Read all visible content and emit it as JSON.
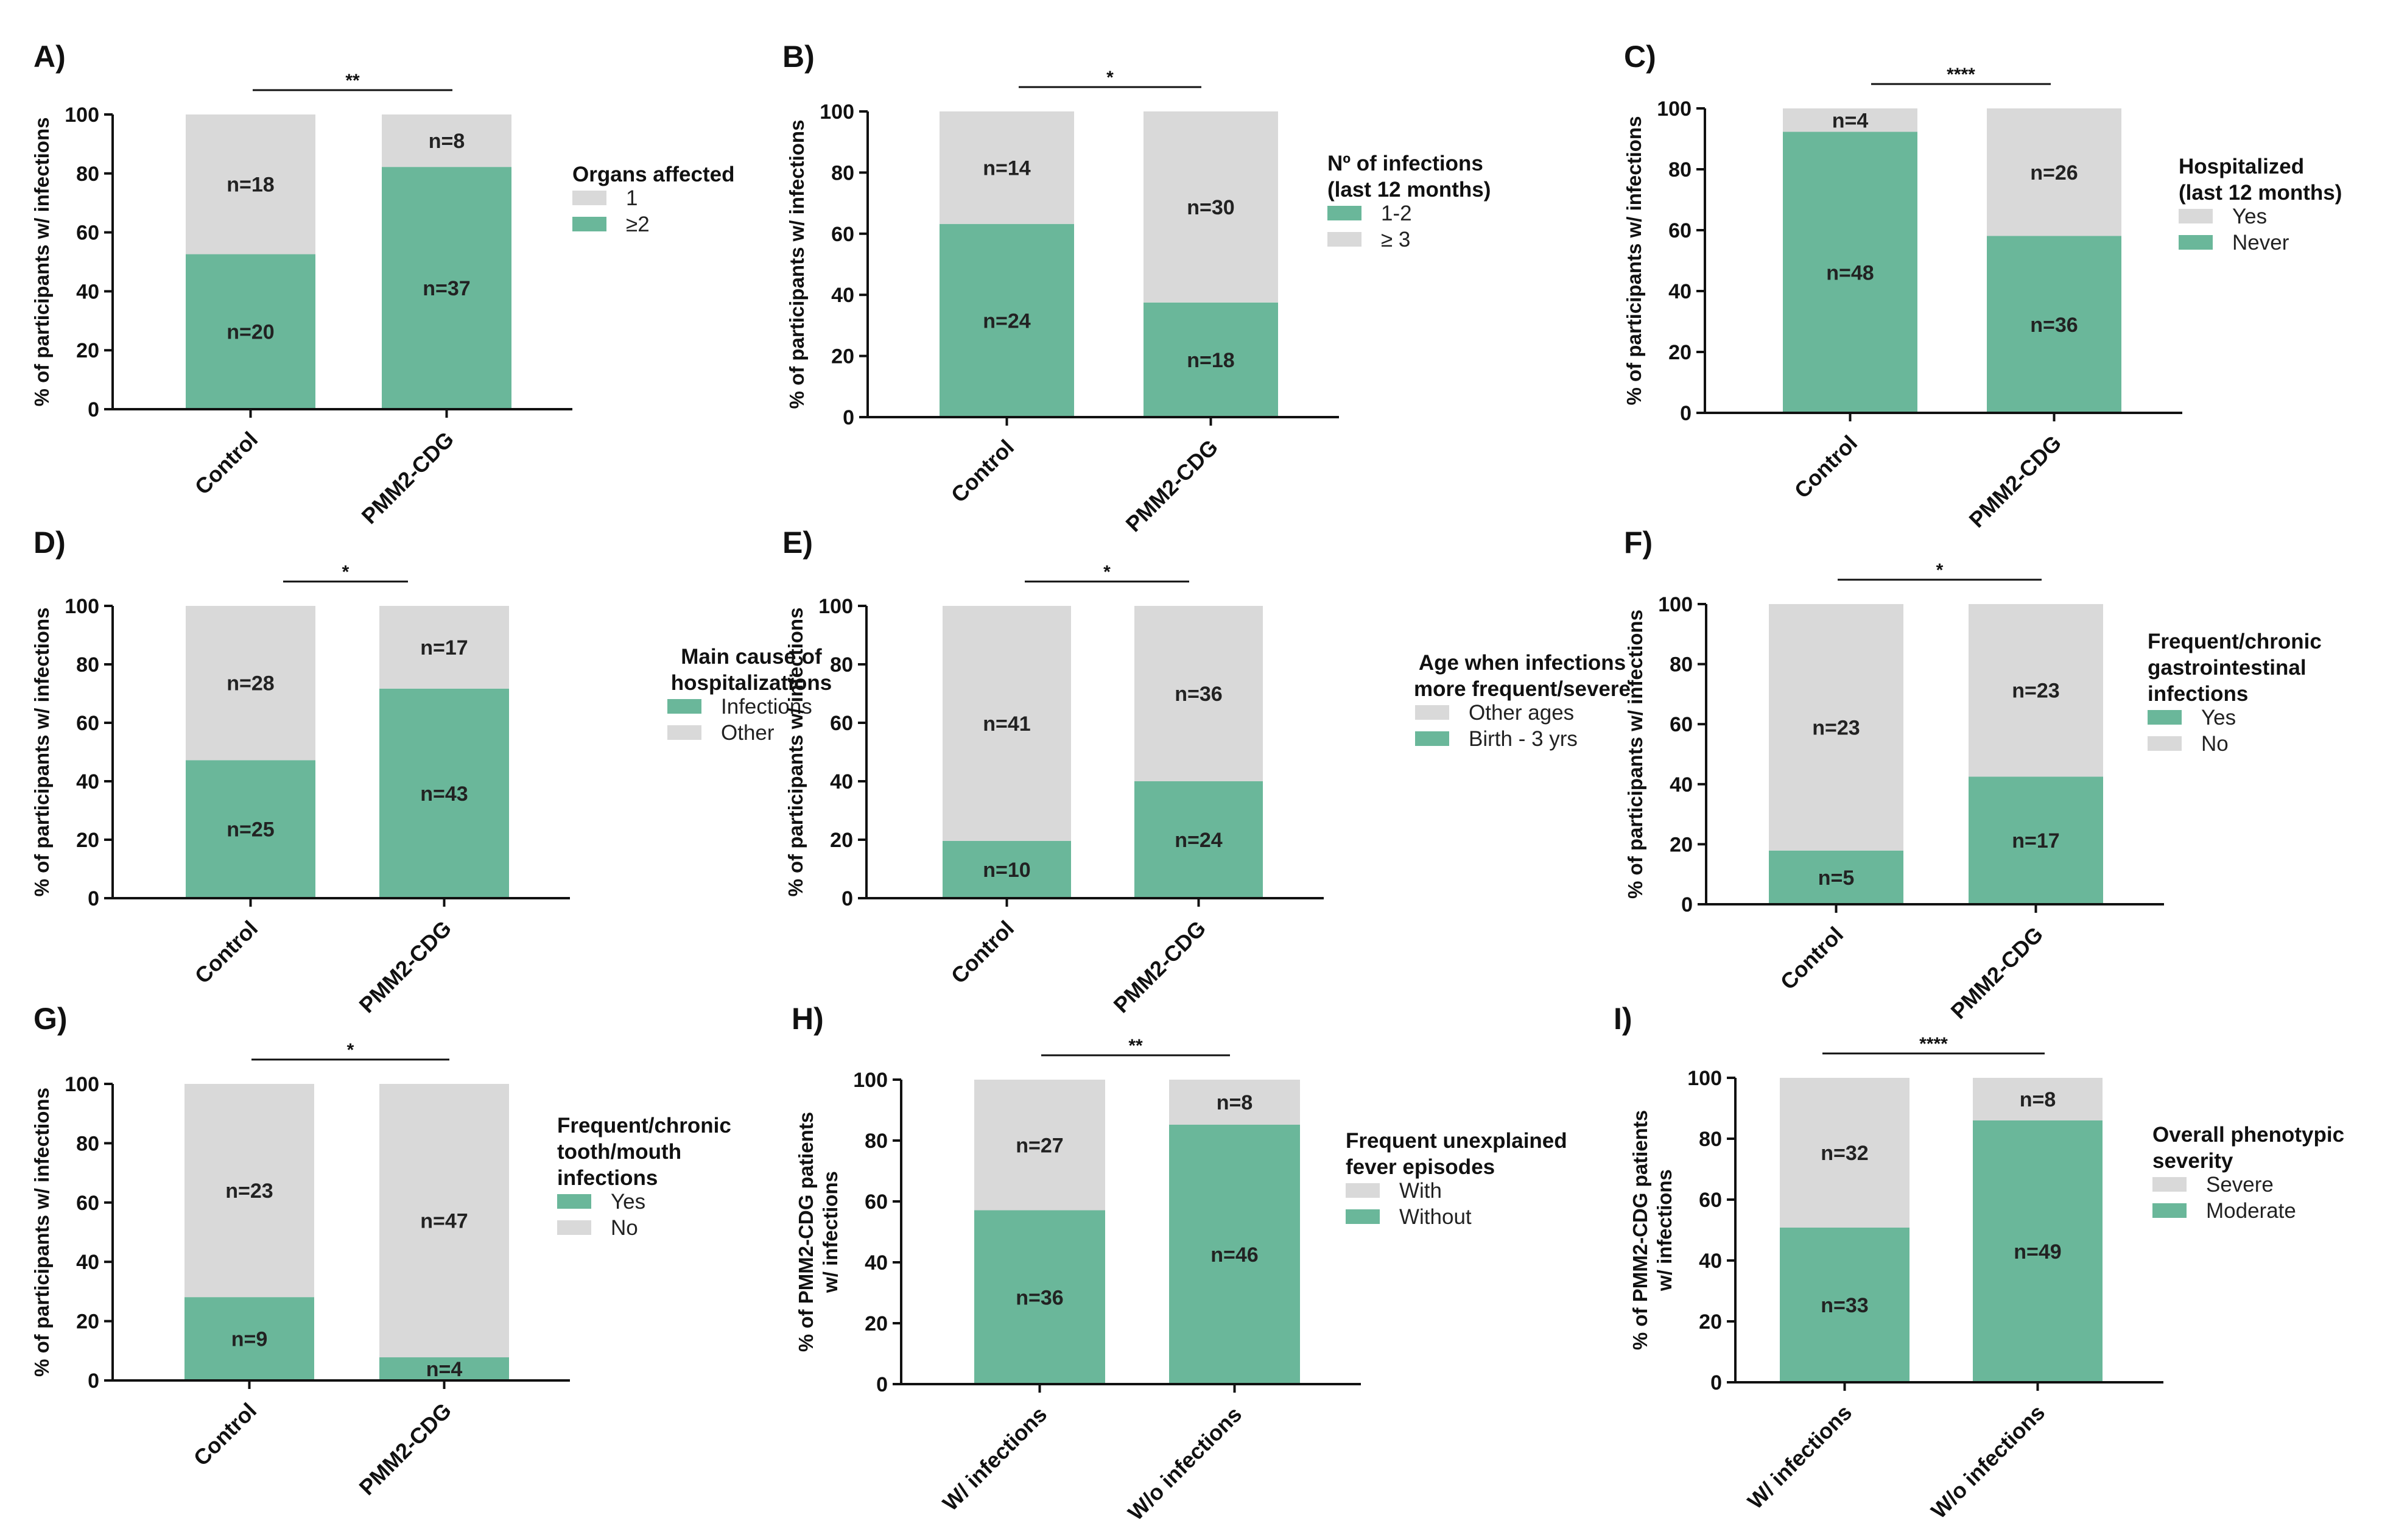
{
  "colors": {
    "accent": "#6ab79a",
    "neutral": "#d9d9d9",
    "axis": "#111111"
  },
  "chart_data": [
    {
      "type": "bar",
      "stacked": true,
      "panel": "A)",
      "categories": [
        "Control",
        "PMM2-CDG"
      ],
      "ylabel": [
        "% of participants w/ infections"
      ],
      "ylim": [
        0,
        100
      ],
      "yticks": [
        0,
        20,
        40,
        60,
        80,
        100
      ],
      "significance": "**",
      "legend_title": [
        "Organs affected"
      ],
      "series": [
        {
          "name": "≥2",
          "color": "#6ab79a",
          "values": [
            52.6,
            82.2
          ],
          "n": [
            "n=20",
            "n=37"
          ]
        },
        {
          "name": "1",
          "color": "#d9d9d9",
          "values": [
            47.4,
            17.8
          ],
          "n": [
            "n=18",
            "n=8"
          ]
        }
      ],
      "legend_order": [
        1,
        0
      ]
    },
    {
      "type": "bar",
      "stacked": true,
      "panel": "B)",
      "categories": [
        "Control",
        "PMM2-CDG"
      ],
      "ylabel": [
        "% of participants w/ infections"
      ],
      "ylim": [
        0,
        100
      ],
      "yticks": [
        0,
        20,
        40,
        60,
        80,
        100
      ],
      "significance": "*",
      "legend_title": [
        "Nº of infections",
        "(last 12 months)"
      ],
      "series": [
        {
          "name": "1-2",
          "color": "#6ab79a",
          "values": [
            63.2,
            37.5
          ],
          "n": [
            "n=24",
            "n=18"
          ]
        },
        {
          "name": "≥ 3",
          "color": "#d9d9d9",
          "values": [
            36.8,
            62.5
          ],
          "n": [
            "n=14",
            "n=30"
          ]
        }
      ],
      "legend_order": [
        0,
        1
      ]
    },
    {
      "type": "bar",
      "stacked": true,
      "panel": "C)",
      "categories": [
        "Control",
        "PMM2-CDG"
      ],
      "ylabel": [
        "% of participants w/ infections"
      ],
      "ylim": [
        0,
        100
      ],
      "yticks": [
        0,
        20,
        40,
        60,
        80,
        100
      ],
      "significance": "****",
      "legend_title": [
        "Hospitalized",
        "(last 12 months)"
      ],
      "series": [
        {
          "name": "Never",
          "color": "#6ab79a",
          "values": [
            92.3,
            58.1
          ],
          "n": [
            "n=48",
            "n=36"
          ]
        },
        {
          "name": "Yes",
          "color": "#d9d9d9",
          "values": [
            7.7,
            41.9
          ],
          "n": [
            "n=4",
            "n=26"
          ]
        }
      ],
      "legend_order": [
        1,
        0
      ]
    },
    {
      "type": "bar",
      "stacked": true,
      "panel": "D)",
      "categories": [
        "Control",
        "PMM2-CDG"
      ],
      "ylabel": [
        "% of participants w/ infections"
      ],
      "ylim": [
        0,
        100
      ],
      "yticks": [
        0,
        20,
        40,
        60,
        80,
        100
      ],
      "significance": "*",
      "legend_title": [
        "Main cause of",
        "hospitalizations"
      ],
      "legend_title_align": "center",
      "series": [
        {
          "name": "Infections",
          "color": "#6ab79a",
          "values": [
            47.2,
            71.7
          ],
          "n": [
            "n=25",
            "n=43"
          ]
        },
        {
          "name": "Other",
          "color": "#d9d9d9",
          "values": [
            52.8,
            28.3
          ],
          "n": [
            "n=28",
            "n=17"
          ]
        }
      ],
      "legend_order": [
        0,
        1
      ]
    },
    {
      "type": "bar",
      "stacked": true,
      "panel": "E)",
      "categories": [
        "Control",
        "PMM2-CDG"
      ],
      "ylabel": [
        "% of participants w/ infections"
      ],
      "ylim": [
        0,
        100
      ],
      "yticks": [
        0,
        20,
        40,
        60,
        80,
        100
      ],
      "significance": "*",
      "legend_title": [
        "Age when infections",
        "more frequent/severe"
      ],
      "legend_title_align": "center",
      "series": [
        {
          "name": "Birth - 3 yrs",
          "color": "#6ab79a",
          "values": [
            19.6,
            40.0
          ],
          "n": [
            "n=10",
            "n=24"
          ]
        },
        {
          "name": "Other ages",
          "color": "#d9d9d9",
          "values": [
            80.4,
            60.0
          ],
          "n": [
            "n=41",
            "n=36"
          ]
        }
      ],
      "legend_order": [
        1,
        0
      ]
    },
    {
      "type": "bar",
      "stacked": true,
      "panel": "F)",
      "categories": [
        "Control",
        "PMM2-CDG"
      ],
      "ylabel": [
        "% of participants w/ infections"
      ],
      "ylim": [
        0,
        100
      ],
      "yticks": [
        0,
        20,
        40,
        60,
        80,
        100
      ],
      "significance": "*",
      "legend_title": [
        "Frequent/chronic",
        "gastrointestinal",
        "infections"
      ],
      "series": [
        {
          "name": "Yes",
          "color": "#6ab79a",
          "values": [
            17.9,
            42.5
          ],
          "n": [
            "n=5",
            "n=17"
          ]
        },
        {
          "name": "No",
          "color": "#d9d9d9",
          "values": [
            82.1,
            57.5
          ],
          "n": [
            "n=23",
            "n=23"
          ]
        }
      ],
      "legend_order": [
        0,
        1
      ]
    },
    {
      "type": "bar",
      "stacked": true,
      "panel": "G)",
      "categories": [
        "Control",
        "PMM2-CDG"
      ],
      "ylabel": [
        "% of participants w/ infections"
      ],
      "ylim": [
        0,
        100
      ],
      "yticks": [
        0,
        20,
        40,
        60,
        80,
        100
      ],
      "significance": "*",
      "legend_title": [
        "Frequent/chronic",
        "tooth/mouth",
        "infections"
      ],
      "series": [
        {
          "name": "Yes",
          "color": "#6ab79a",
          "values": [
            28.1,
            7.8
          ],
          "n": [
            "n=9",
            "n=4"
          ]
        },
        {
          "name": "No",
          "color": "#d9d9d9",
          "values": [
            71.9,
            92.2
          ],
          "n": [
            "n=23",
            "n=47"
          ]
        }
      ],
      "legend_order": [
        0,
        1
      ]
    },
    {
      "type": "bar",
      "stacked": true,
      "panel": "H)",
      "categories": [
        "W/ infections",
        "W/o infections"
      ],
      "ylabel": [
        "% of PMM2-CDG patients",
        "w/ infections"
      ],
      "ylim": [
        0,
        100
      ],
      "yticks": [
        0,
        20,
        40,
        60,
        80,
        100
      ],
      "significance": "**",
      "legend_title": [
        "Frequent unexplained",
        "fever episodes"
      ],
      "series": [
        {
          "name": "Without",
          "color": "#6ab79a",
          "values": [
            57.1,
            85.2
          ],
          "n": [
            "n=36",
            "n=46"
          ]
        },
        {
          "name": "With",
          "color": "#d9d9d9",
          "values": [
            42.9,
            14.8
          ],
          "n": [
            "n=27",
            "n=8"
          ]
        }
      ],
      "legend_order": [
        1,
        0
      ]
    },
    {
      "type": "bar",
      "stacked": true,
      "panel": "I)",
      "categories": [
        "W/ infections",
        "W/o infections"
      ],
      "ylabel": [
        "% of PMM2-CDG patients",
        "w/ infections"
      ],
      "ylim": [
        0,
        100
      ],
      "yticks": [
        0,
        20,
        40,
        60,
        80,
        100
      ],
      "significance": "****",
      "legend_title": [
        "Overall phenotypic",
        "severity"
      ],
      "series": [
        {
          "name": "Moderate",
          "color": "#6ab79a",
          "values": [
            50.8,
            86.0
          ],
          "n": [
            "n=33",
            "n=49"
          ]
        },
        {
          "name": "Severe",
          "color": "#d9d9d9",
          "values": [
            49.2,
            14.0
          ],
          "n": [
            "n=32",
            "n=8"
          ]
        }
      ],
      "legend_order": [
        1,
        0
      ]
    }
  ]
}
